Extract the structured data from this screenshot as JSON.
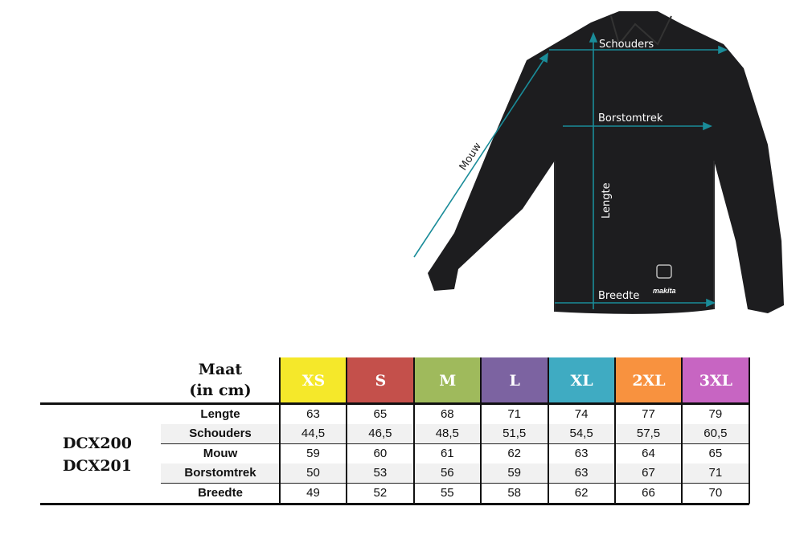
{
  "diagram": {
    "labels": {
      "schouders": "Schouders",
      "borstomtrek": "Borstomtrek",
      "lengte": "Lengte",
      "breedte": "Breedte",
      "mouw": "Mouw"
    },
    "brand_logo": "makita",
    "arrow_color": "#1a8c99"
  },
  "table": {
    "header": {
      "line1": "Maat",
      "line2": "(in cm)"
    },
    "sizes": [
      {
        "label": "XS",
        "color": "#f5e82a"
      },
      {
        "label": "S",
        "color": "#c4504b"
      },
      {
        "label": "M",
        "color": "#9fba5c"
      },
      {
        "label": "L",
        "color": "#7c63a1"
      },
      {
        "label": "XL",
        "color": "#3fabc2"
      },
      {
        "label": "2XL",
        "color": "#f8923f"
      },
      {
        "label": "3XL",
        "color": "#c765c2"
      }
    ],
    "models": [
      "DCX200",
      "DCX201"
    ],
    "rows": [
      {
        "label": "Lengte",
        "values": [
          "63",
          "65",
          "68",
          "71",
          "74",
          "77",
          "79"
        ]
      },
      {
        "label": "Schouders",
        "values": [
          "44,5",
          "46,5",
          "48,5",
          "51,5",
          "54,5",
          "57,5",
          "60,5"
        ]
      },
      {
        "label": "Mouw",
        "values": [
          "59",
          "60",
          "61",
          "62",
          "63",
          "64",
          "65"
        ]
      },
      {
        "label": "Borstomtrek",
        "values": [
          "50",
          "53",
          "56",
          "59",
          "63",
          "67",
          "71"
        ]
      },
      {
        "label": "Breedte",
        "values": [
          "49",
          "52",
          "55",
          "58",
          "62",
          "66",
          "70"
        ]
      }
    ]
  }
}
